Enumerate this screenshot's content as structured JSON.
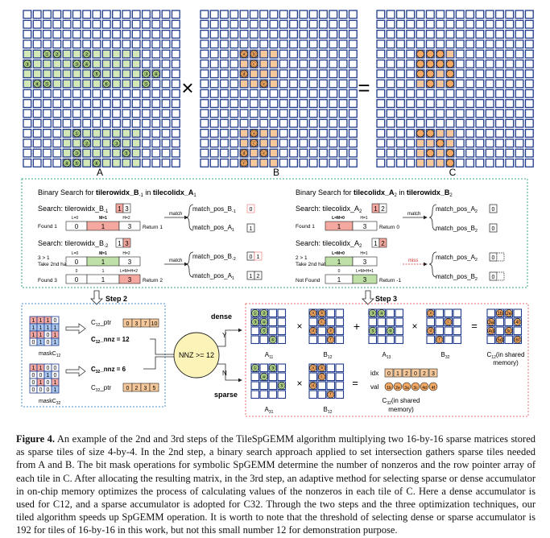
{
  "matrices": {
    "label_a": "A",
    "label_b": "B",
    "label_c": "C",
    "op_multiply": "×",
    "op_equals": "=",
    "a_circles": [
      "①",
      "②",
      "③",
      "④",
      "⑤",
      "⑥"
    ],
    "b_circles": [
      "ⓐ",
      "ⓑ",
      "ⓒ",
      "ⓓ",
      "ⓔ",
      "ⓕ"
    ],
    "colors": {
      "grid_line": "#1f3a8a",
      "cell_empty": "#ffffff",
      "a_tile": "#d3e8b6",
      "b_tile": "#f7c99a",
      "c_tile": "#f7c99a",
      "c_tile_light": "#f9dcbd",
      "a_circle": "#b6dc8e",
      "b_circle": "#f4a964"
    }
  },
  "search_panel": {
    "left": {
      "title_prefix": "Binary Search for ",
      "title_bold1": "tilerowidx_B",
      "title_sub1": "-1",
      "title_mid": " in ",
      "title_bold2": "tilecolidx_A",
      "title_sub2": "1",
      "row1": {
        "search_label": "Search:  tilerowidx_B",
        "search_sub": "-1",
        "search_vals": [
          "1",
          "3"
        ],
        "ptr_l": "L=0",
        "ptr_m": "M=1",
        "ptr_h": "H=2",
        "cells": [
          "0",
          "1",
          "3"
        ],
        "status": "Found 1",
        "match": "match",
        "result": "Return 1",
        "out1": "match_pos_B",
        "out1_sub": "-1",
        "out1_val": "0",
        "out2": "match_pos_A",
        "out2_sub": "1",
        "out2_val": "1"
      },
      "row2": {
        "search_label": "Search:  tilerowidx_B",
        "search_sub": "-2",
        "search_vals": [
          "1",
          "3"
        ],
        "step_a": "3 > 1",
        "step_b": "Take 2nd half",
        "ptr_l": "L=0",
        "ptr_m": "M=1",
        "ptr_h": "H=2",
        "cells": [
          "0",
          "1",
          "3"
        ],
        "ptr2_a": "0",
        "ptr2_b": "1",
        "ptr2_c": "L=M=H=2",
        "cells2": [
          "0",
          "1",
          "3"
        ],
        "status": "Found 3",
        "match": "match",
        "result": "Return 2",
        "out1": "match_pos_B",
        "out1_sub": "-2",
        "out1_vals": [
          "0",
          "1"
        ],
        "out2": "match_pos_A",
        "out2_sub": "1",
        "out2_vals": [
          "1",
          "2"
        ]
      }
    },
    "right": {
      "title_prefix": "Binary Search for ",
      "title_bold1": "tilecolidx_A",
      "title_sub1": "2",
      "title_mid": " in ",
      "title_bold2": "tilerowidx_B",
      "title_sub2": "2",
      "row1": {
        "search_label": "Search:  tilecolidx_A",
        "search_sub": "2",
        "search_vals": [
          "1",
          "2"
        ],
        "ptr_lm": "L=M=0",
        "ptr_h": "H=1",
        "cells": [
          "1",
          "3"
        ],
        "status": "Found 1",
        "match": "match",
        "result": "Return 0",
        "out1": "match_pos_A",
        "out1_sub": "2",
        "out1_val": "0",
        "out2": "match_pos_B",
        "out2_sub": "2",
        "out2_val": "0"
      },
      "row2": {
        "search_label": "Search:  tilecolidx_A",
        "search_sub": "2",
        "search_vals": [
          "1",
          "2"
        ],
        "step_a": "2 > 1",
        "step_b": "Take 2nd half",
        "ptr_lm": "L=M=0",
        "ptr_h": "H=1",
        "cells": [
          "1",
          "3"
        ],
        "ptr2_a": "0",
        "ptr2_b": "L=M=H=1",
        "cells2": [
          "1",
          "3"
        ],
        "status": "Not Found",
        "match": "miss",
        "result": "Return -1",
        "out1": "match_pos_A",
        "out1_sub": "2",
        "out1_val": "0",
        "out2": "match_pos_B",
        "out2_sub": "2",
        "out2_val": "0"
      }
    }
  },
  "step2": {
    "title": "Step 2",
    "mask1": {
      "bits": [
        [
          "1",
          "1",
          "1",
          "0"
        ],
        [
          "1",
          "1",
          "1",
          "1"
        ],
        [
          "1",
          "1",
          "0",
          "1"
        ],
        [
          "0",
          "1",
          "0",
          "1"
        ]
      ],
      "label": "maskC",
      "label_sub": "12"
    },
    "ptr1_label": "C",
    "ptr1_sub": "12",
    "ptr1_suffix": "_ptr",
    "ptr1_vals": [
      "0",
      "3",
      "7",
      "10"
    ],
    "nnz1_label": "C",
    "nnz1_sub": "12",
    "nnz1_suffix": "_nnz = 12",
    "mask2": {
      "bits": [
        [
          "1",
          "1",
          "0",
          "0"
        ],
        [
          "0",
          "0",
          "1",
          "0"
        ],
        [
          "0",
          "1",
          "0",
          "1"
        ],
        [
          "0",
          "0",
          "0",
          "1"
        ]
      ],
      "label": "maskC",
      "label_sub": "32"
    },
    "nnz2_label": "C",
    "nnz2_sub": "32",
    "nnz2_suffix": "_nnz = 6",
    "ptr2_label": "C",
    "ptr2_sub": "32",
    "ptr2_suffix": "_ptr",
    "ptr2_vals": [
      "0",
      "2",
      "3",
      "5"
    ]
  },
  "decision": {
    "text": "NNZ >= 12",
    "yes": "Y",
    "no": "N",
    "dense": "dense",
    "sparse": "sparse"
  },
  "step3": {
    "title": "Step 3",
    "dense_a1": "A",
    "dense_a1_sub": "11",
    "dense_b1": "B",
    "dense_b1_sub": "12",
    "dense_a2": "A",
    "dense_a2_sub": "13",
    "dense_b2": "B",
    "dense_b2_sub": "32",
    "dense_c_label": "C",
    "dense_c_sub": "12",
    "dense_c_suffix": "(in shared",
    "dense_c_suffix2": "memory)",
    "dense_c_cells": [
      "1b",
      "2e",
      "3a",
      "4f",
      "4d",
      "3c",
      "5d",
      "6f"
    ],
    "ops": [
      "×",
      "+",
      "×",
      "="
    ],
    "sparse_a": "A",
    "sparse_a_sub": "31",
    "sparse_b": "B",
    "sparse_b_sub": "12",
    "idx_label": "idx",
    "idx_vals": [
      "0",
      "1",
      "2",
      "0",
      "2",
      "3"
    ],
    "val_label": "val",
    "val_vals": [
      "1b",
      "2e",
      "3a",
      "3c",
      "4d",
      "4f"
    ],
    "sparse_c_label": "C",
    "sparse_c_sub": "32",
    "sparse_c_suffix": "(in shared",
    "sparse_c_suffix2": "memory)"
  },
  "caption": {
    "figure": "Figure 4.",
    "text": "An example of the 2nd and 3rd steps of the TileSpGEMM algorithm multiplying two 16-by-16 sparse matrices stored as sparse tiles of size 4-by-4. In the 2nd step, a binary search approach applied to set intersection gathers sparse tiles needed from A and B. The bit mask operations for symbolic SpGEMM determine the number of nonzeros and the row pointer array of each tile in C. After allocating the resulting matrix, in the 3rd step, an adaptive method for selecting sparse or dense accumulator in on-chip memory optimizes the process of calculating values of the nonzeros in each tile of C. Here a dense accumulator is used for C12, and a sparse accumulator is adopted for C32. Through the two steps and the three optimization techniques, our tiled algorithm speeds up SpGEMM operation. It is worth to note that the threshold of selecting dense or sparse accumulator is 192 for tiles of 16-by-16 in this work, but not this small number 12 for demonstration purpose."
  }
}
